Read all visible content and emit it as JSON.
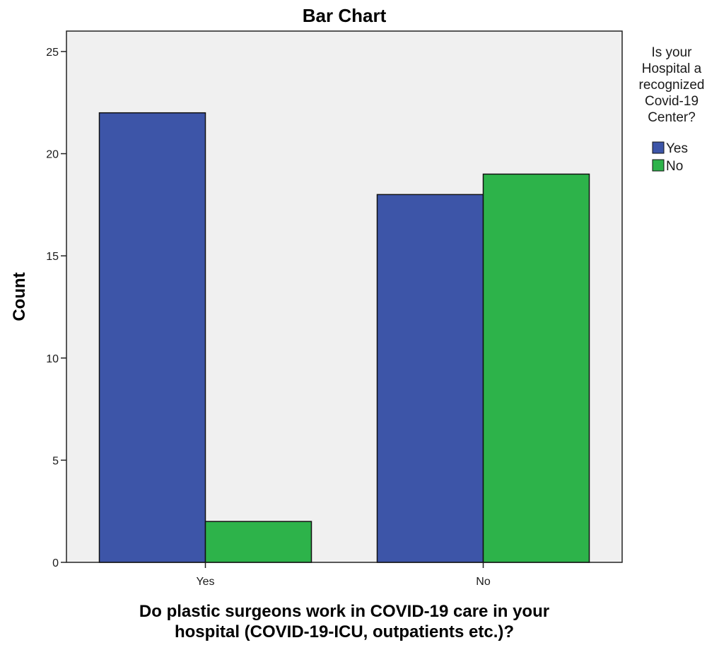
{
  "chart_data": {
    "type": "bar",
    "title": "Bar Chart",
    "xlabel": "Do plastic surgeons work in COVID-19 care in your hospital (COVID-19-ICU, outpatients etc.)?",
    "xlabel_lines": [
      "Do plastic surgeons work in COVID-19 care in your",
      "hospital (COVID-19-ICU, outpatients etc.)?"
    ],
    "ylabel": "Count",
    "categories": [
      "Yes",
      "No"
    ],
    "series": [
      {
        "name": "Yes",
        "values": [
          22,
          18
        ],
        "color": "#3d55a8"
      },
      {
        "name": "No",
        "values": [
          2,
          19
        ],
        "color": "#2db34a"
      }
    ],
    "ylim": [
      0,
      26
    ],
    "yticks": [
      0,
      5,
      10,
      15,
      20,
      25
    ],
    "grid": false,
    "legend": {
      "position": "right",
      "title_lines": [
        "Is your",
        "Hospital a",
        "recognized",
        "Covid-19",
        "Center?"
      ]
    },
    "plot_background": "#f0f0f0"
  }
}
